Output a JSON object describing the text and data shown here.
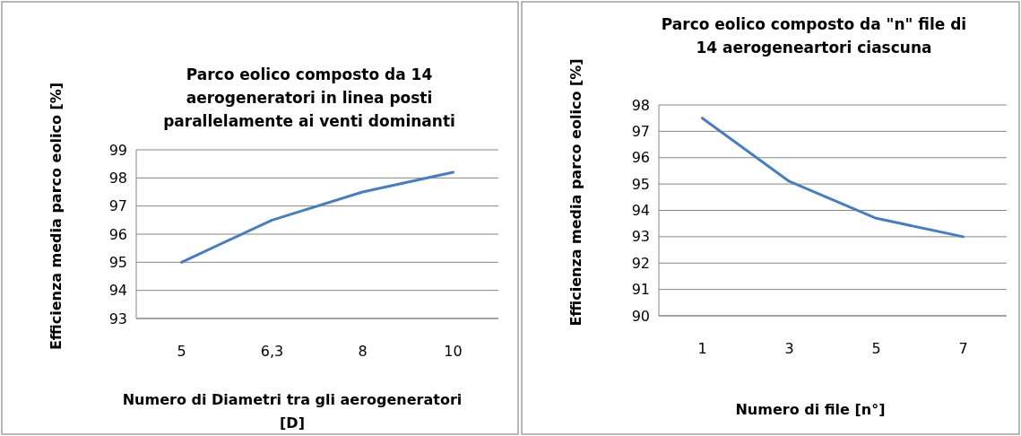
{
  "chart_data": [
    {
      "type": "line",
      "title": "Parco eolico composto da 14 aerogeneratori in linea posti parallelamente ai venti dominanti",
      "xlabel": "Numero di Diametri tra gli aerogeneratori [D]",
      "ylabel": "Efficienza media parco eolico [%]",
      "categories": [
        "5",
        "6,3",
        "8",
        "10"
      ],
      "series": [
        {
          "color": "#4a7ebb",
          "values": [
            95,
            96.5,
            97.5,
            98.2
          ]
        }
      ],
      "ylim": [
        93,
        99
      ],
      "yticks": [
        93,
        94,
        95,
        96,
        97,
        98,
        99
      ],
      "grid": "y",
      "marker": "none",
      "line_style": "solid"
    },
    {
      "type": "line",
      "title": "Parco eolico composto da \"n\" file di 14 aerogeneartori ciascuna",
      "xlabel": "Numero di file [n°]",
      "ylabel": "Efficienza media parco eolico [%]",
      "categories": [
        "1",
        "3",
        "5",
        "7"
      ],
      "series": [
        {
          "color": "#4a7ebb",
          "values": [
            97.5,
            95.1,
            93.7,
            93.0
          ]
        }
      ],
      "ylim": [
        90,
        98
      ],
      "yticks": [
        90,
        91,
        92,
        93,
        94,
        95,
        96,
        97,
        98
      ],
      "grid": "y",
      "marker": "none",
      "line_style": "solid"
    }
  ]
}
